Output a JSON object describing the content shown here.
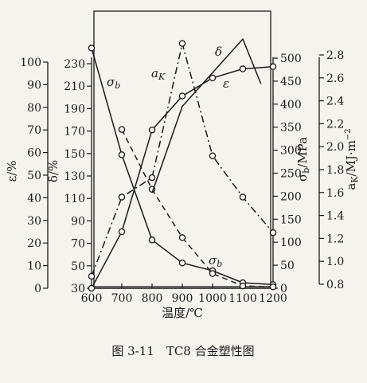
{
  "chart_data": {
    "type": "line",
    "caption": "图 3-11　TC8 合金塑性图",
    "xlabel": "温度/℃",
    "x_ticks": [
      600,
      700,
      800,
      900,
      1000,
      1100,
      1200
    ],
    "xlim": [
      600,
      1200
    ],
    "axes": {
      "epsilon": {
        "label": "ε/%",
        "ticks": [
          0,
          10,
          20,
          30,
          40,
          50,
          60,
          70,
          80,
          90,
          100
        ],
        "ylim": [
          0,
          105
        ]
      },
      "delta": {
        "label": "δ/%",
        "ticks": [
          30,
          50,
          70,
          90,
          110,
          130,
          150,
          170,
          190,
          210,
          230
        ],
        "ylim": [
          30,
          240
        ]
      },
      "sigma_b": {
        "label": "σ_b/MPa",
        "ticks": [
          0,
          50,
          100,
          150,
          200,
          250,
          300,
          350,
          400,
          450,
          500
        ],
        "ylim": [
          0,
          530
        ]
      },
      "a_K": {
        "label": "a_K/MJ·m⁻²",
        "ticks": [
          0.8,
          1.0,
          1.2,
          1.4,
          1.6,
          1.8,
          2.0,
          2.2,
          2.4,
          2.6,
          2.8
        ],
        "ylim": [
          0.8,
          2.85
        ]
      }
    },
    "series": [
      {
        "name": "σb",
        "axis": "sigma_b",
        "style": "solid",
        "marker": "circle",
        "x": [
          600,
          700,
          800,
          900,
          1000,
          1100,
          1200
        ],
        "y": [
          522,
          290,
          105,
          55,
          38,
          12,
          8
        ]
      },
      {
        "name": "σb",
        "axis": "sigma_b",
        "style": "dashed",
        "marker": "circle",
        "x": [
          700,
          800,
          900,
          1000,
          1100,
          1200
        ],
        "y": [
          345,
          215,
          110,
          32,
          5,
          3
        ]
      },
      {
        "name": "aK",
        "axis": "a_K",
        "style": "dashdot",
        "marker": "circle",
        "x": [
          600,
          700,
          800,
          900,
          1000,
          1100,
          1200
        ],
        "y": [
          0.87,
          1.56,
          1.73,
          2.9,
          1.92,
          1.56,
          1.25
        ]
      },
      {
        "name": "δ",
        "axis": "delta",
        "style": "solid",
        "marker": "none",
        "x": [
          800,
          900,
          1100,
          1160
        ],
        "y": [
          115,
          192,
          252,
          212
        ]
      },
      {
        "name": "ε",
        "axis": "epsilon",
        "style": "solid",
        "marker": "circle",
        "x": [
          600,
          700,
          800,
          900,
          1000,
          1100,
          1200
        ],
        "y": [
          0,
          25,
          70,
          85,
          93,
          97,
          98
        ]
      }
    ],
    "annotations": [
      "σb",
      "aK",
      "δ",
      "ε",
      "σb"
    ]
  }
}
